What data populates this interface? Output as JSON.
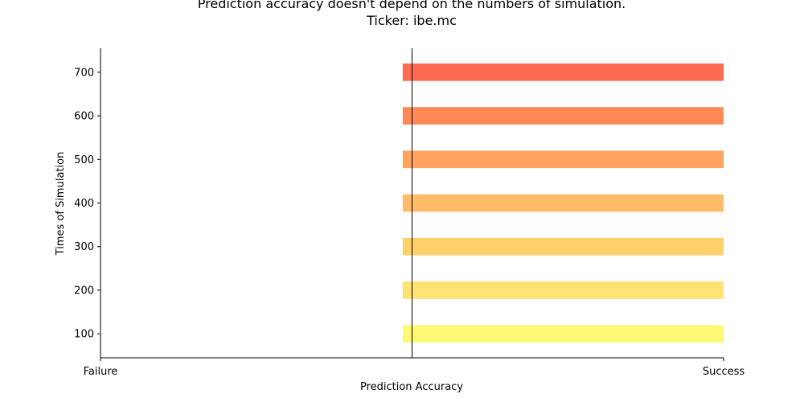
{
  "chart_data": {
    "type": "bar",
    "orientation": "horizontal",
    "title_lines": [
      "Prediction accuracy doesn't depend on the numbers of simulation.",
      "Ticker: ibe.mc"
    ],
    "xlabel": "Prediction Accuracy",
    "ylabel": "Times of Simulation",
    "x_tick_labels": [
      "Failure",
      "Success"
    ],
    "xlim": [
      -0.5,
      0.5
    ],
    "ylim": [
      45,
      755
    ],
    "categories": [
      100,
      200,
      300,
      400,
      500,
      600,
      700
    ],
    "y_ticks": [
      100,
      200,
      300,
      400,
      500,
      600,
      700
    ],
    "bar_start": -0.015,
    "values": [
      0.5,
      0.5,
      0.5,
      0.5,
      0.5,
      0.5,
      0.5
    ],
    "bar_thickness": 40,
    "reference_line_x": 0,
    "colors": [
      "#fffa73",
      "#ffe372",
      "#ffd06a",
      "#ffbb68",
      "#ffa35f",
      "#ff8957",
      "#ff6a52"
    ],
    "spines": [
      "left",
      "bottom"
    ],
    "grid": false
  }
}
